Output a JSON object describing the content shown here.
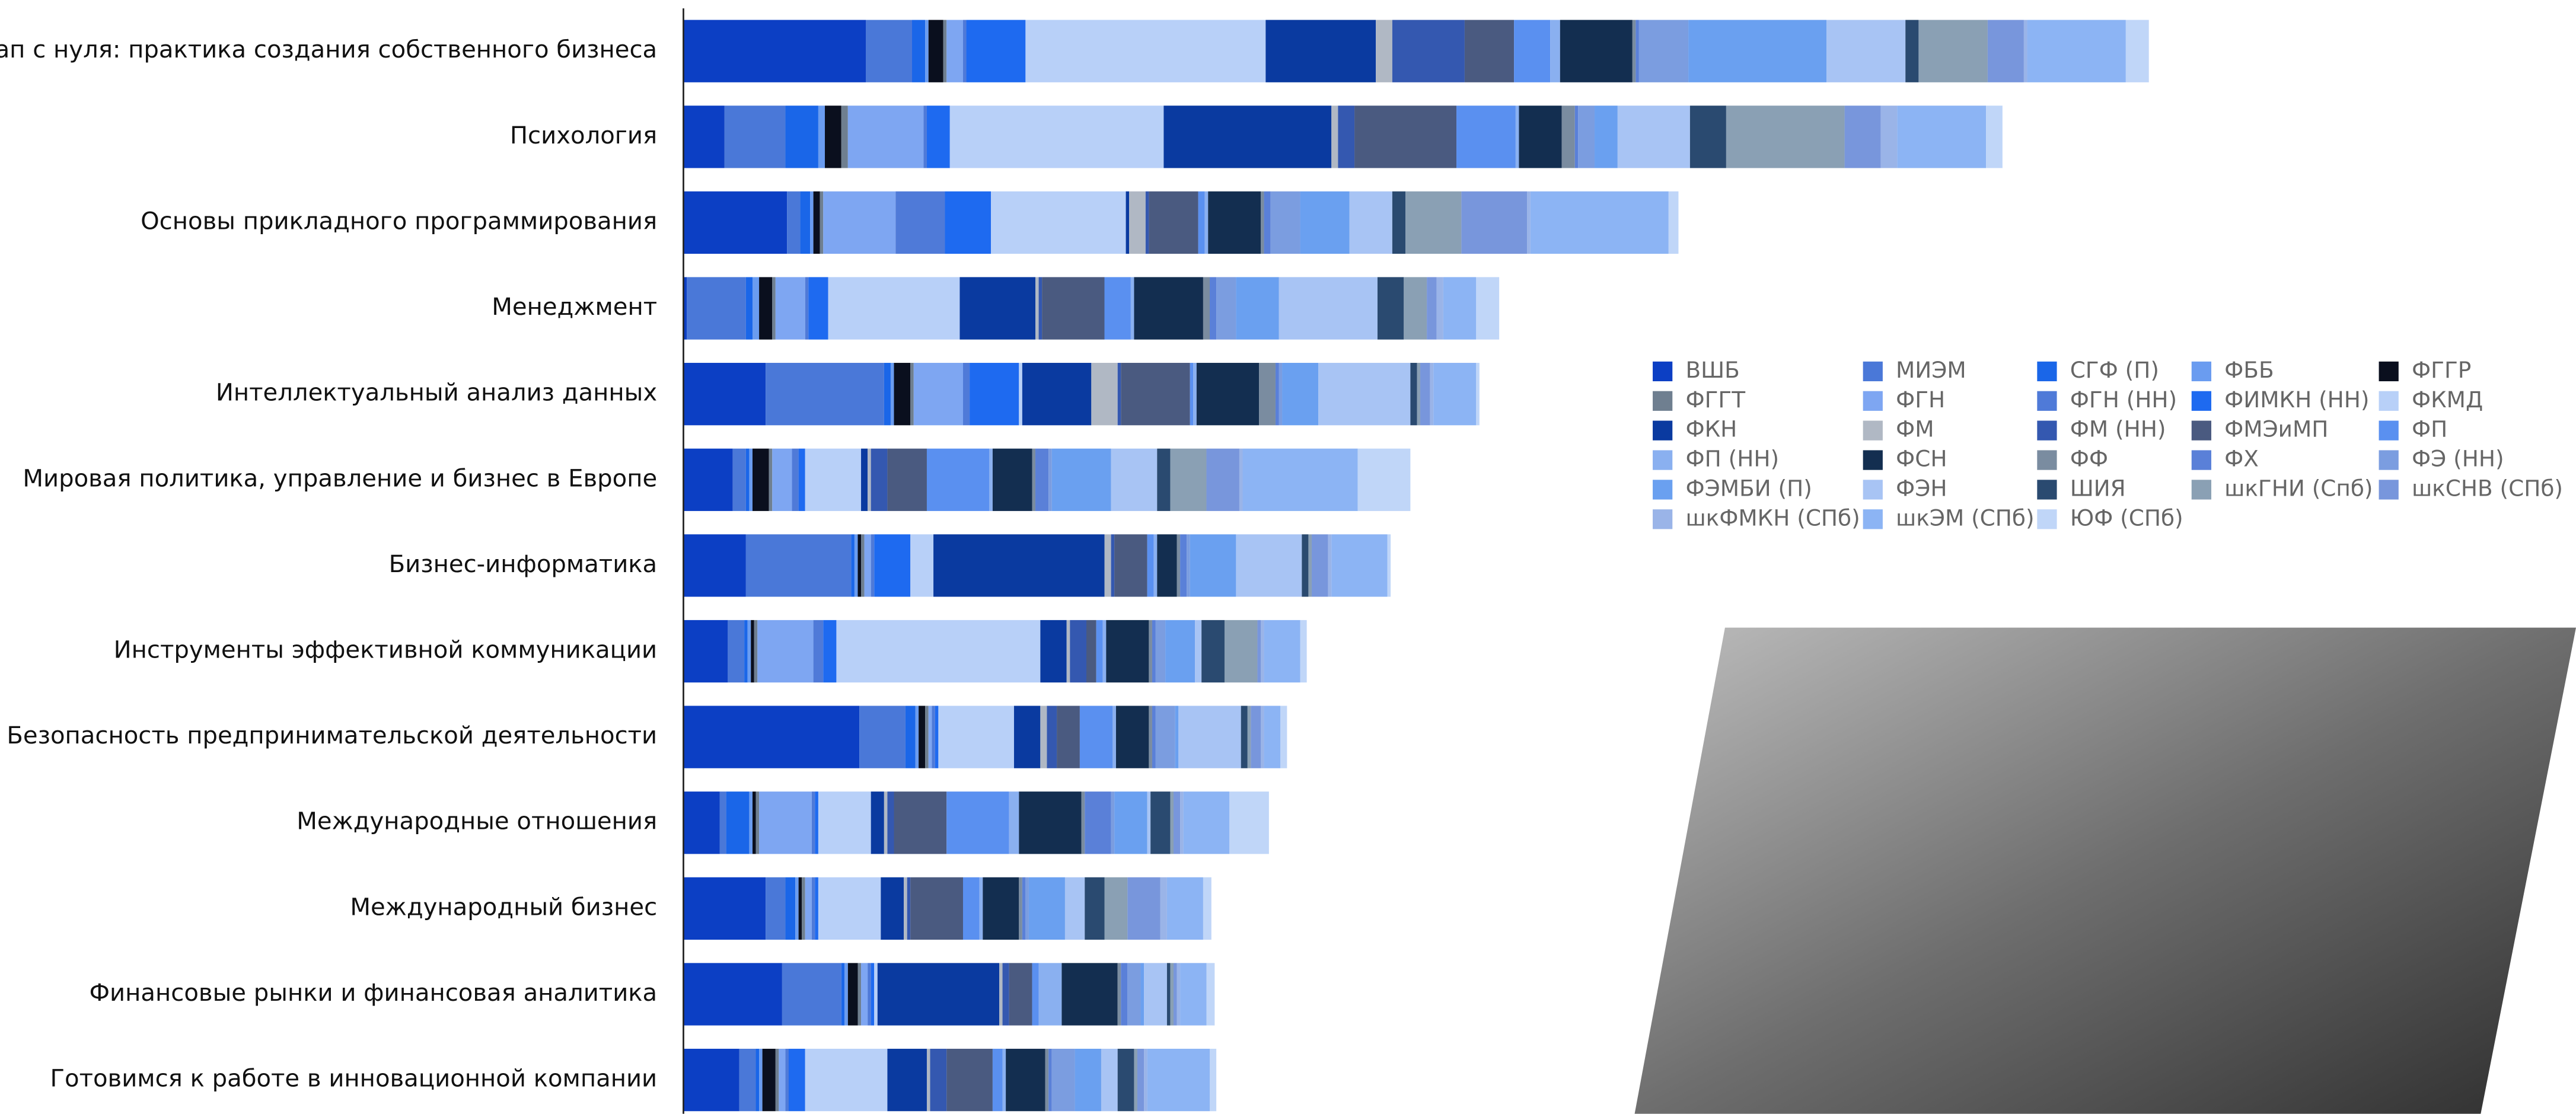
{
  "chart_data": {
    "type": "stacked-bar-horizontal",
    "categories": [
      "Стартап с нуля: практика создания собственного бизнеса",
      "Психология",
      "Основы прикладного программирования",
      "Менеджмент",
      "Интеллектуальный анализ данных",
      "Мировая политика, управление и бизнес в Европе",
      "Бизнес-информатика",
      "Инструменты эффективной коммуникации",
      "Безопасность предпринимательской деятельности",
      "Международные отношения",
      "Международный бизнес",
      "Финансовые рынки и финансовая аналитика",
      "Готовимся к работе в инновационной компании"
    ],
    "series": [
      {
        "name": "ВШБ",
        "color": "#0c3fc4",
        "values": [
          111,
          25,
          63,
          2,
          50,
          30,
          38,
          27,
          107,
          22,
          50,
          60,
          34
        ]
      },
      {
        "name": "МИЭМ",
        "color": "#4a78d8",
        "values": [
          28,
          37,
          8,
          36,
          72,
          8,
          64,
          10,
          28,
          4,
          12,
          36,
          10
        ]
      },
      {
        "name": "СГФ (П)",
        "color": "#1a66e8",
        "values": [
          8,
          20,
          6,
          4,
          4,
          2,
          2,
          2,
          6,
          14,
          6,
          2,
          2
        ]
      },
      {
        "name": "ФББ",
        "color": "#6a9cf0",
        "values": [
          2,
          4,
          2,
          4,
          2,
          2,
          2,
          2,
          2,
          2,
          2,
          2,
          2
        ]
      },
      {
        "name": "ФГГР",
        "color": "#0a0f1e",
        "values": [
          9,
          10,
          4,
          8,
          10,
          10,
          2,
          2,
          4,
          2,
          2,
          6,
          8
        ]
      },
      {
        "name": "ФГГТ",
        "color": "#6f7f90",
        "values": [
          2,
          4,
          2,
          2,
          2,
          2,
          2,
          2,
          2,
          2,
          2,
          2,
          2
        ]
      },
      {
        "name": "ФГН",
        "color": "#7ea6f2",
        "values": [
          10,
          46,
          44,
          18,
          30,
          12,
          4,
          34,
          2,
          32,
          4,
          4,
          4
        ]
      },
      {
        "name": "ФГН (НН)",
        "color": "#4f7ad8",
        "values": [
          2,
          2,
          30,
          2,
          4,
          4,
          2,
          6,
          2,
          2,
          2,
          2,
          2
        ]
      },
      {
        "name": "ФИМКН (НН)",
        "color": "#1e6af0",
        "values": [
          36,
          14,
          28,
          12,
          30,
          4,
          22,
          8,
          2,
          2,
          2,
          2,
          10
        ]
      },
      {
        "name": "ФКМД",
        "color": "#b8d0f8",
        "values": [
          146,
          130,
          82,
          80,
          2,
          34,
          14,
          124,
          46,
          32,
          38,
          2,
          50
        ]
      },
      {
        "name": "ФКН",
        "color": "#0a3aa0",
        "values": [
          67,
          102,
          2,
          46,
          42,
          4,
          104,
          16,
          16,
          8,
          14,
          74,
          24
        ]
      },
      {
        "name": "ФМ",
        "color": "#b0b8c4",
        "values": [
          10,
          4,
          10,
          2,
          16,
          2,
          4,
          2,
          4,
          2,
          2,
          2,
          2
        ]
      },
      {
        "name": "ФМ (НН)",
        "color": "#3458b0",
        "values": [
          44,
          10,
          2,
          2,
          2,
          10,
          2,
          10,
          6,
          4,
          2,
          4,
          10
        ]
      },
      {
        "name": "ФМЭиМП",
        "color": "#4a5a80",
        "values": [
          30,
          62,
          30,
          38,
          42,
          24,
          20,
          6,
          14,
          32,
          32,
          14,
          28
        ]
      },
      {
        "name": "ФП",
        "color": "#5a90f0",
        "values": [
          22,
          36,
          4,
          16,
          2,
          38,
          4,
          4,
          20,
          38,
          10,
          4,
          6
        ]
      },
      {
        "name": "ФП (НН)",
        "color": "#8ab0f0",
        "values": [
          6,
          2,
          2,
          2,
          2,
          2,
          2,
          2,
          2,
          6,
          2,
          14,
          2
        ]
      },
      {
        "name": "ФСН",
        "color": "#132e50",
        "values": [
          44,
          26,
          32,
          42,
          38,
          24,
          12,
          26,
          20,
          38,
          22,
          34,
          24
        ]
      },
      {
        "name": "ФФ",
        "color": "#7a8ca0",
        "values": [
          2,
          8,
          2,
          4,
          10,
          2,
          2,
          2,
          2,
          2,
          2,
          2,
          2
        ]
      },
      {
        "name": "ФХ",
        "color": "#5a80d8",
        "values": [
          2,
          2,
          4,
          4,
          2,
          8,
          4,
          2,
          2,
          16,
          2,
          4,
          2
        ]
      },
      {
        "name": "ФЭ (НН)",
        "color": "#7b9de0",
        "values": [
          30,
          10,
          18,
          12,
          2,
          2,
          2,
          6,
          12,
          2,
          2,
          8,
          14
        ]
      },
      {
        "name": "ФЭМБИ (П)",
        "color": "#6aa0f0",
        "values": [
          84,
          14,
          30,
          26,
          22,
          36,
          28,
          18,
          2,
          20,
          22,
          2,
          16
        ]
      },
      {
        "name": "ФЭН",
        "color": "#a8c4f4",
        "values": [
          48,
          44,
          26,
          60,
          56,
          28,
          40,
          4,
          38,
          2,
          12,
          14,
          10
        ]
      },
      {
        "name": "ШИЯ",
        "color": "#2a4a70",
        "values": [
          8,
          22,
          8,
          16,
          4,
          8,
          4,
          14,
          4,
          12,
          12,
          2,
          10
        ]
      },
      {
        "name": "шкГНИ (Спб)",
        "color": "#8aa0b4",
        "values": [
          42,
          72,
          34,
          14,
          2,
          22,
          2,
          20,
          2,
          2,
          14,
          2,
          2
        ]
      },
      {
        "name": "шкСНВ (СПб)",
        "color": "#7896dc",
        "values": [
          22,
          22,
          40,
          6,
          6,
          20,
          10,
          2,
          6,
          4,
          20,
          2,
          4
        ]
      },
      {
        "name": "шкФМКН (СПб)",
        "color": "#9ab4e8",
        "values": [
          2,
          10,
          2,
          4,
          2,
          2,
          2,
          2,
          2,
          2,
          4,
          2,
          2
        ]
      },
      {
        "name": "шкЭМ (СПб)",
        "color": "#8cb4f4",
        "values": [
          60,
          54,
          84,
          20,
          26,
          70,
          34,
          22,
          10,
          28,
          22,
          16,
          38
        ]
      },
      {
        "name": "ЮФ (СПб)",
        "color": "#c0d6f8",
        "values": [
          14,
          10,
          6,
          14,
          2,
          32,
          2,
          4,
          4,
          24,
          5,
          5,
          4
        ]
      }
    ]
  }
}
